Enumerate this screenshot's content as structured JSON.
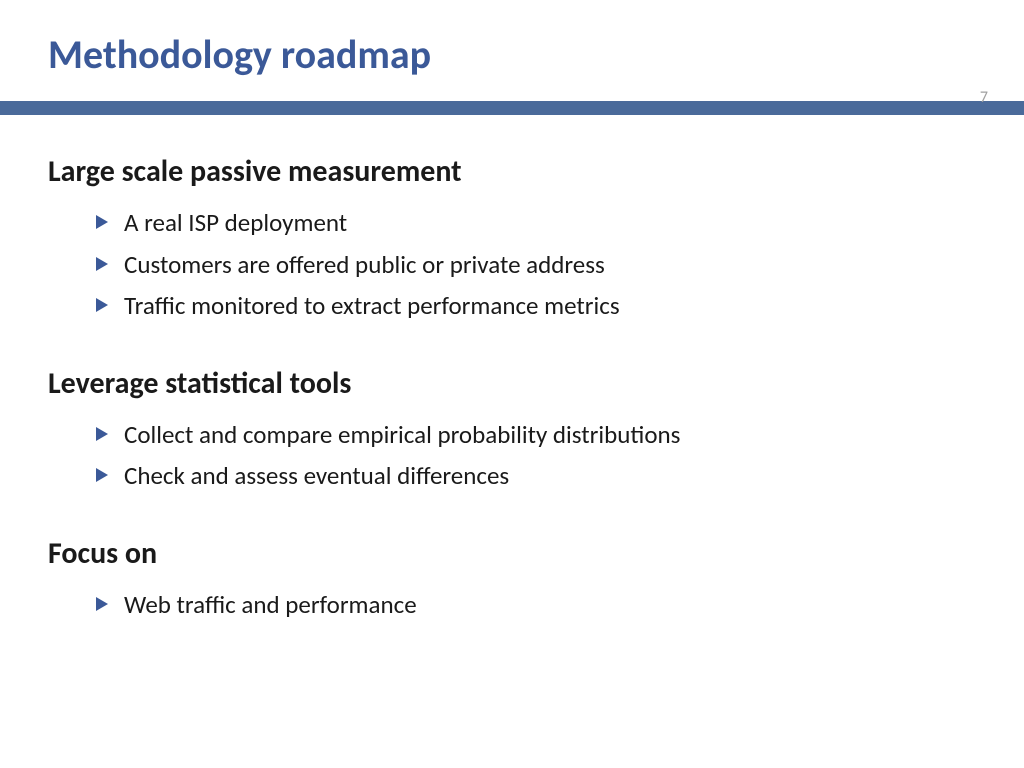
{
  "title": "Methodology roadmap",
  "pageNumber": "7",
  "colors": {
    "titleColor": "#3b5998",
    "dividerColor": "#4a6a9a",
    "bulletColor": "#3b5998",
    "textColor": "#1a1a1a",
    "pageNumColor": "#a0a0a0",
    "background": "#ffffff"
  },
  "typography": {
    "titleFontSize": 40,
    "headingFontSize": 30,
    "bodyFontSize": 25,
    "pageNumFontSize": 16
  },
  "sections": [
    {
      "heading": "Large scale passive measurement",
      "bullets": [
        "A real ISP deployment",
        "Customers are offered public or private address",
        "Traffic monitored to extract performance metrics"
      ]
    },
    {
      "heading": "Leverage statistical tools",
      "bullets": [
        "Collect and compare empirical probability distributions",
        "Check and assess eventual differences"
      ]
    },
    {
      "heading": "Focus on",
      "bullets": [
        "Web traffic and performance"
      ]
    }
  ]
}
